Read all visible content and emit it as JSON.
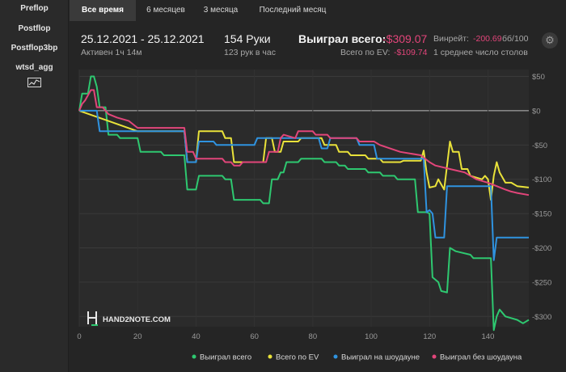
{
  "sidebar": {
    "items": [
      {
        "label": "Preflop"
      },
      {
        "label": "Postflop"
      },
      {
        "label": "Postflop3bp"
      },
      {
        "label": "wtsd_agg"
      }
    ],
    "graph_icon": "line-chart-icon"
  },
  "tabs": [
    {
      "label": "Все время",
      "active": true
    },
    {
      "label": "6 месяцев",
      "active": false
    },
    {
      "label": "3 месяца",
      "active": false
    },
    {
      "label": "Последний месяц",
      "active": false
    }
  ],
  "stats": {
    "date_range": "25.12.2021 - 25.12.2021",
    "active": "Активен 1ч 14м",
    "hands": "154 Руки",
    "hands_per_hour": "123 рук в час",
    "won_label": "Выиграл всего:",
    "won_value": "-$309.07",
    "ev_label": "Всего по EV:",
    "ev_value": "-$109.74",
    "winrate_label": "Винрейт:",
    "winrate_value": "-200.69",
    "winrate_unit": "бб/100",
    "tables": "1 среднее число столов"
  },
  "watermark": "HAND2NOTE.COM",
  "colors": {
    "accent_negative": "#e2457a",
    "won": "#2ec870",
    "ev": "#e9e23a",
    "showdown": "#2f93e0",
    "non_showdown": "#e2457a"
  },
  "chart_data": {
    "type": "line",
    "xlabel": "",
    "ylabel": "",
    "xlim": [
      0,
      154
    ],
    "ylim": [
      -315,
      60
    ],
    "x_ticks": [
      0,
      20,
      40,
      60,
      80,
      100,
      120,
      140
    ],
    "y_ticks": [
      50,
      0,
      -50,
      -100,
      -150,
      -200,
      -250,
      -300
    ],
    "y_tick_labels": [
      "$50",
      "$0",
      "-$50",
      "-$100",
      "-$150",
      "-$200",
      "-$250",
      "-$300"
    ],
    "grid": true,
    "legend_position": "bottom",
    "series": [
      {
        "name": "Выиграл всего",
        "color": "#2ec870",
        "points": [
          [
            0,
            0
          ],
          [
            1,
            25
          ],
          [
            3,
            25
          ],
          [
            4,
            50
          ],
          [
            5,
            50
          ],
          [
            6,
            35
          ],
          [
            7,
            5
          ],
          [
            9,
            5
          ],
          [
            10,
            -35
          ],
          [
            13,
            -35
          ],
          [
            14,
            -40
          ],
          [
            20,
            -40
          ],
          [
            21,
            -60
          ],
          [
            28,
            -60
          ],
          [
            29,
            -65
          ],
          [
            36,
            -65
          ],
          [
            37,
            -115
          ],
          [
            40,
            -115
          ],
          [
            41,
            -95
          ],
          [
            49,
            -95
          ],
          [
            50,
            -100
          ],
          [
            52,
            -100
          ],
          [
            53,
            -130
          ],
          [
            62,
            -130
          ],
          [
            63,
            -135
          ],
          [
            65,
            -135
          ],
          [
            66,
            -100
          ],
          [
            68,
            -100
          ],
          [
            69,
            -90
          ],
          [
            70,
            -90
          ],
          [
            71,
            -75
          ],
          [
            75,
            -75
          ],
          [
            76,
            -70
          ],
          [
            83,
            -70
          ],
          [
            84,
            -75
          ],
          [
            88,
            -75
          ],
          [
            89,
            -80
          ],
          [
            91,
            -80
          ],
          [
            92,
            -85
          ],
          [
            98,
            -85
          ],
          [
            99,
            -90
          ],
          [
            103,
            -90
          ],
          [
            104,
            -95
          ],
          [
            108,
            -95
          ],
          [
            109,
            -100
          ],
          [
            115,
            -100
          ],
          [
            116,
            -148
          ],
          [
            119,
            -148
          ],
          [
            120,
            -150
          ],
          [
            121,
            -243
          ],
          [
            123,
            -250
          ],
          [
            124,
            -263
          ],
          [
            126,
            -265
          ],
          [
            127,
            -200
          ],
          [
            129,
            -205
          ],
          [
            134,
            -210
          ],
          [
            135,
            -215
          ],
          [
            141,
            -215
          ],
          [
            142,
            -320
          ],
          [
            143,
            -300
          ],
          [
            144,
            -290
          ],
          [
            146,
            -300
          ],
          [
            150,
            -305
          ],
          [
            152,
            -310
          ],
          [
            154,
            -305
          ]
        ]
      },
      {
        "name": "Всего по EV",
        "color": "#e9e23a",
        "points": [
          [
            0,
            0
          ],
          [
            20,
            -30
          ],
          [
            36,
            -30
          ],
          [
            37,
            -75
          ],
          [
            40,
            -75
          ],
          [
            41,
            -30
          ],
          [
            49,
            -30
          ],
          [
            50,
            -40
          ],
          [
            52,
            -40
          ],
          [
            53,
            -75
          ],
          [
            63,
            -75
          ],
          [
            64,
            -40
          ],
          [
            66,
            -40
          ],
          [
            67,
            -60
          ],
          [
            69,
            -60
          ],
          [
            70,
            -45
          ],
          [
            75,
            -45
          ],
          [
            76,
            -40
          ],
          [
            83,
            -40
          ],
          [
            84,
            -50
          ],
          [
            88,
            -50
          ],
          [
            89,
            -60
          ],
          [
            92,
            -60
          ],
          [
            93,
            -65
          ],
          [
            98,
            -65
          ],
          [
            99,
            -70
          ],
          [
            103,
            -70
          ],
          [
            104,
            -75
          ],
          [
            110,
            -75
          ],
          [
            111,
            -73
          ],
          [
            117,
            -73
          ],
          [
            118,
            -58
          ],
          [
            119,
            -90
          ],
          [
            120,
            -112
          ],
          [
            122,
            -110
          ],
          [
            123,
            -100
          ],
          [
            125,
            -115
          ],
          [
            126,
            -80
          ],
          [
            127,
            -45
          ],
          [
            128,
            -60
          ],
          [
            130,
            -60
          ],
          [
            131,
            -85
          ],
          [
            133,
            -85
          ],
          [
            134,
            -95
          ],
          [
            138,
            -100
          ],
          [
            139,
            -95
          ],
          [
            140,
            -100
          ],
          [
            141,
            -130
          ],
          [
            142,
            -95
          ],
          [
            143,
            -75
          ],
          [
            144,
            -90
          ],
          [
            146,
            -105
          ],
          [
            148,
            -105
          ],
          [
            150,
            -110
          ],
          [
            154,
            -112
          ]
        ]
      },
      {
        "name": "Выиграл на шоудауне",
        "color": "#2f93e0",
        "points": [
          [
            0,
            0
          ],
          [
            6,
            0
          ],
          [
            7,
            -30
          ],
          [
            36,
            -30
          ],
          [
            37,
            -75
          ],
          [
            40,
            -75
          ],
          [
            41,
            -45
          ],
          [
            46,
            -45
          ],
          [
            47,
            -50
          ],
          [
            60,
            -50
          ],
          [
            61,
            -40
          ],
          [
            82,
            -40
          ],
          [
            83,
            -55
          ],
          [
            85,
            -55
          ],
          [
            86,
            -40
          ],
          [
            95,
            -40
          ],
          [
            96,
            -50
          ],
          [
            101,
            -50
          ],
          [
            102,
            -70
          ],
          [
            118,
            -70
          ],
          [
            119,
            -148
          ],
          [
            120,
            -145
          ],
          [
            121,
            -150
          ],
          [
            122,
            -185
          ],
          [
            125,
            -185
          ],
          [
            126,
            -110
          ],
          [
            141,
            -110
          ],
          [
            142,
            -218
          ],
          [
            143,
            -185
          ],
          [
            154,
            -185
          ]
        ]
      },
      {
        "name": "Выиграл без шоудауна",
        "color": "#e2457a",
        "points": [
          [
            0,
            0
          ],
          [
            1,
            10
          ],
          [
            2,
            15
          ],
          [
            4,
            30
          ],
          [
            5,
            30
          ],
          [
            6,
            5
          ],
          [
            8,
            5
          ],
          [
            10,
            -5
          ],
          [
            13,
            -10
          ],
          [
            17,
            -15
          ],
          [
            20,
            -25
          ],
          [
            36,
            -25
          ],
          [
            37,
            -60
          ],
          [
            39,
            -60
          ],
          [
            40,
            -70
          ],
          [
            49,
            -70
          ],
          [
            50,
            -75
          ],
          [
            52,
            -75
          ],
          [
            53,
            -80
          ],
          [
            55,
            -80
          ],
          [
            56,
            -75
          ],
          [
            64,
            -75
          ],
          [
            65,
            -60
          ],
          [
            68,
            -60
          ],
          [
            69,
            -40
          ],
          [
            70,
            -35
          ],
          [
            74,
            -40
          ],
          [
            75,
            -30
          ],
          [
            80,
            -30
          ],
          [
            81,
            -35
          ],
          [
            85,
            -35
          ],
          [
            86,
            -40
          ],
          [
            95,
            -40
          ],
          [
            96,
            -45
          ],
          [
            101,
            -45
          ],
          [
            103,
            -50
          ],
          [
            110,
            -60
          ],
          [
            117,
            -65
          ],
          [
            120,
            -75
          ],
          [
            122,
            -80
          ],
          [
            127,
            -85
          ],
          [
            132,
            -90
          ],
          [
            136,
            -100
          ],
          [
            140,
            -105
          ],
          [
            143,
            -110
          ],
          [
            146,
            -115
          ],
          [
            148,
            -118
          ],
          [
            150,
            -120
          ],
          [
            154,
            -123
          ]
        ]
      }
    ]
  }
}
